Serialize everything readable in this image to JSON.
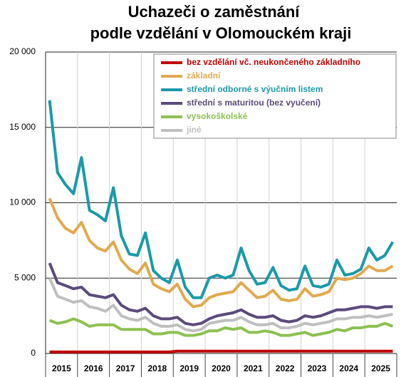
{
  "chart_data": {
    "type": "line",
    "title": [
      "Uchazeči o zaměstnání",
      "podle vzdělání v Olomouckém kraji"
    ],
    "categories": [
      "2015",
      null,
      null,
      null,
      "2016",
      null,
      null,
      null,
      "2017",
      null,
      null,
      null,
      "2018",
      null,
      null,
      null,
      "2019",
      null,
      null,
      null,
      "2020",
      null,
      null,
      null,
      "2021",
      null,
      null,
      null,
      "2022",
      null,
      null,
      null,
      "2023",
      null,
      null,
      null,
      "2024",
      null,
      null,
      null,
      "2025",
      null,
      null,
      null
    ],
    "ylim": [
      0,
      20000
    ],
    "yticks": [
      0,
      {
        "value": 5000,
        "label": "5 000"
      },
      {
        "value": 10000,
        "label": "10 000"
      },
      {
        "value": 15000,
        "label": "15 000"
      },
      {
        "value": 20000,
        "label": "20 000"
      }
    ],
    "grid": true,
    "legend": "upper right",
    "series": [
      {
        "name": "bez vzdělání vč. neukončeného základního",
        "color": "#c00000",
        "values": [
          100,
          100,
          100,
          100,
          100,
          100,
          100,
          100,
          100,
          100,
          100,
          100,
          100,
          100,
          100,
          100,
          150,
          150,
          150,
          150,
          150,
          150,
          150,
          150,
          150,
          150,
          150,
          150,
          150,
          150,
          150,
          150,
          150,
          150,
          150,
          150,
          150,
          150,
          150,
          150,
          150,
          150,
          150,
          150
        ]
      },
      {
        "name": "základní",
        "color": "#e0aa4e",
        "values": [
          10300,
          9000,
          8300,
          8000,
          8700,
          7500,
          7000,
          6800,
          7400,
          6200,
          5600,
          5300,
          6000,
          4600,
          4300,
          4100,
          4600,
          3600,
          3100,
          3200,
          3700,
          3900,
          4000,
          4100,
          4700,
          4200,
          3700,
          3800,
          4200,
          3600,
          3500,
          3600,
          4300,
          3800,
          3900,
          4100,
          5000,
          4900,
          5000,
          5300,
          5800,
          5500,
          5500,
          5800
        ]
      },
      {
        "name": "střední odborné s výučním listem",
        "color": "#1a9aaa",
        "values": [
          16800,
          12000,
          11200,
          10600,
          13000,
          9500,
          9200,
          8800,
          11000,
          7800,
          6600,
          6500,
          8000,
          5500,
          5000,
          4700,
          6200,
          4400,
          3700,
          3700,
          5000,
          5200,
          5000,
          5200,
          7000,
          5500,
          4600,
          4700,
          5700,
          4500,
          4200,
          4300,
          5800,
          4500,
          4400,
          4600,
          6200,
          5200,
          5300,
          5600,
          7000,
          6200,
          6500,
          7400
        ]
      },
      {
        "name": "střední s maturitou (bez vyučení)",
        "color": "#5b4b7a",
        "values": [
          6000,
          4700,
          4500,
          4300,
          4400,
          3900,
          3800,
          3700,
          3900,
          3200,
          2900,
          2800,
          3000,
          2500,
          2300,
          2300,
          2400,
          2000,
          1900,
          2000,
          2300,
          2500,
          2600,
          2700,
          2900,
          2600,
          2400,
          2400,
          2500,
          2200,
          2100,
          2200,
          2500,
          2400,
          2500,
          2700,
          2900,
          2900,
          3000,
          3100,
          3100,
          3000,
          3100,
          3100
        ]
      },
      {
        "name": "vysokoškolské",
        "color": "#8cc152",
        "values": [
          2200,
          2000,
          2100,
          2300,
          2100,
          1800,
          1900,
          1900,
          1900,
          1600,
          1600,
          1600,
          1600,
          1300,
          1300,
          1400,
          1400,
          1200,
          1200,
          1300,
          1500,
          1500,
          1700,
          1600,
          1700,
          1400,
          1400,
          1500,
          1400,
          1200,
          1200,
          1300,
          1400,
          1200,
          1300,
          1400,
          1600,
          1500,
          1700,
          1700,
          1800,
          1800,
          2000,
          1800
        ]
      },
      {
        "name": "jiné",
        "color": "#bfbfbf",
        "values": [
          5000,
          3800,
          3600,
          3400,
          3500,
          3100,
          3000,
          2800,
          3200,
          2500,
          2300,
          2200,
          2400,
          2000,
          1800,
          1800,
          1900,
          1600,
          1500,
          1600,
          2000,
          2100,
          2200,
          2200,
          2400,
          2100,
          1900,
          1900,
          2000,
          1700,
          1700,
          1800,
          2000,
          1900,
          2000,
          2100,
          2300,
          2300,
          2400,
          2400,
          2500,
          2400,
          2500,
          2600
        ]
      }
    ]
  }
}
